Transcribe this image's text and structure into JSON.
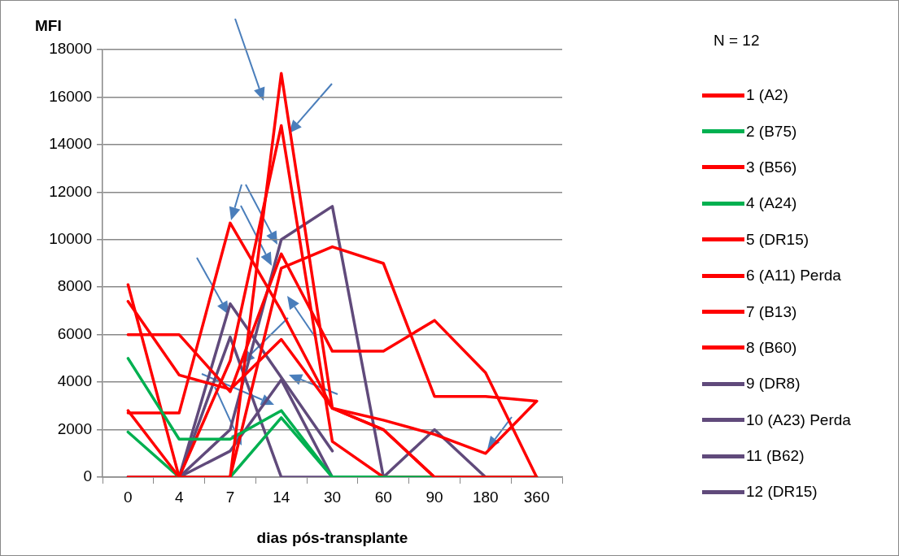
{
  "chart_data": {
    "type": "line",
    "xlabel": "dias pós-transplante",
    "ylabel": "MFI",
    "legend_title": "N = 12",
    "legend": "right",
    "grid": "y",
    "categories": [
      "0",
      "4",
      "7",
      "14",
      "30",
      "60",
      "90",
      "180",
      "360"
    ],
    "ylim": [
      0,
      18000
    ],
    "yticks": [
      0,
      2000,
      4000,
      6000,
      8000,
      10000,
      12000,
      14000,
      16000,
      18000
    ],
    "series": [
      {
        "name": "1 (A2)",
        "color": "#ff0000",
        "values": [
          2800,
          0,
          0,
          17000,
          2900,
          2000,
          0,
          0,
          0
        ]
      },
      {
        "name": "2 (B75)",
        "color": "#00b050",
        "values": [
          5000,
          1600,
          1600,
          2800,
          0,
          0,
          0,
          0,
          0
        ]
      },
      {
        "name": "3 (B56)",
        "color": "#ff0000",
        "values": [
          8100,
          0,
          4900,
          14800,
          1500,
          0,
          0,
          0,
          0
        ]
      },
      {
        "name": "4 (A24)",
        "color": "#00b050",
        "values": [
          1900,
          0,
          0,
          2500,
          0,
          0,
          0,
          0,
          0
        ]
      },
      {
        "name": "5 (DR15)",
        "color": "#ff0000",
        "values": [
          6000,
          6000,
          3600,
          9400,
          5300,
          5300,
          6600,
          4400,
          0
        ]
      },
      {
        "name": "6 (A11) Perda",
        "color": "#ff0000",
        "values": [
          7400,
          4300,
          3700,
          5800,
          2900,
          2400,
          1800,
          1000,
          3200
        ]
      },
      {
        "name": "7 (B13)",
        "color": "#ff0000",
        "values": [
          2700,
          2700,
          10700,
          7000,
          2900,
          2000,
          0,
          0,
          0
        ]
      },
      {
        "name": "8 (B60)",
        "color": "#ff0000",
        "values": [
          0,
          0,
          0,
          8800,
          9700,
          9000,
          3400,
          3400,
          3200
        ]
      },
      {
        "name": "9 (DR8)",
        "color": "#604a7b",
        "values": [
          0,
          0,
          7300,
          4200,
          1100,
          null,
          null,
          null,
          null
        ]
      },
      {
        "name": "10 (A23) Perda",
        "color": "#604a7b",
        "values": [
          0,
          0,
          2000,
          10000,
          11400,
          0,
          2000,
          0,
          0
        ]
      },
      {
        "name": "11 (B62)",
        "color": "#604a7b",
        "values": [
          0,
          0,
          5900,
          0,
          0,
          0,
          0,
          0,
          0
        ]
      },
      {
        "name": "12 (DR15)",
        "color": "#604a7b",
        "values": [
          0,
          0,
          1100,
          4100,
          0,
          0,
          0,
          0,
          0
        ]
      }
    ]
  }
}
